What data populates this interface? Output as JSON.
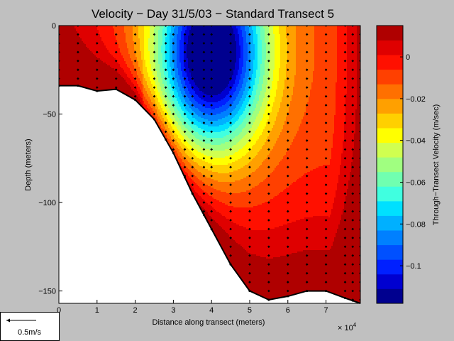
{
  "chart_data": {
    "type": "heatmap",
    "title": "Velocity − Day 31/5/03 − Standard Transect 5",
    "xlabel": "Distance along transect (meters)",
    "ylabel": "Depth (meters)",
    "x_exponent_label": "× 10",
    "x_exponent_power": "4",
    "xlim": [
      0,
      79000
    ],
    "ylim": [
      -157,
      0
    ],
    "x_ticks": [
      {
        "value": 0,
        "label": "0"
      },
      {
        "value": 10000,
        "label": "1"
      },
      {
        "value": 20000,
        "label": "2"
      },
      {
        "value": 30000,
        "label": "3"
      },
      {
        "value": 40000,
        "label": "4"
      },
      {
        "value": 50000,
        "label": "5"
      },
      {
        "value": 60000,
        "label": "6"
      },
      {
        "value": 70000,
        "label": "7"
      }
    ],
    "y_ticks": [
      {
        "value": 0,
        "label": "0"
      },
      {
        "value": -50,
        "label": "−50"
      },
      {
        "value": -100,
        "label": "−100"
      },
      {
        "value": -150,
        "label": "−150"
      }
    ],
    "colorbar": {
      "label": "Through−Transect Velocity (m/sec)",
      "range": [
        -0.118,
        0.015
      ],
      "levels": 19,
      "tick_values": [
        0,
        -0.02,
        -0.04,
        -0.06,
        -0.08,
        -0.1
      ],
      "tick_labels": [
        "0",
        "−0.02",
        "−0.04",
        "−0.06",
        "−0.08",
        "−0.1"
      ],
      "colors": [
        "#00008f",
        "#0000d0",
        "#0020ff",
        "#0050ff",
        "#0080ff",
        "#00b0ff",
        "#00e0ff",
        "#40ffe0",
        "#70ffb0",
        "#a0ff80",
        "#d0ff50",
        "#ffff00",
        "#ffd000",
        "#ffa000",
        "#ff7000",
        "#ff4000",
        "#ff1000",
        "#df0000",
        "#af0000"
      ]
    },
    "bottom_profile": [
      {
        "x": 0,
        "depth": -34
      },
      {
        "x": 5000,
        "depth": -34
      },
      {
        "x": 10000,
        "depth": -37
      },
      {
        "x": 15000,
        "depth": -36
      },
      {
        "x": 20000,
        "depth": -42
      },
      {
        "x": 25000,
        "depth": -53
      },
      {
        "x": 30000,
        "depth": -72
      },
      {
        "x": 35000,
        "depth": -95
      },
      {
        "x": 40000,
        "depth": -115
      },
      {
        "x": 45000,
        "depth": -135
      },
      {
        "x": 50000,
        "depth": -150
      },
      {
        "x": 55000,
        "depth": -155
      },
      {
        "x": 60000,
        "depth": -153
      },
      {
        "x": 65000,
        "depth": -150
      },
      {
        "x": 70000,
        "depth": -150
      },
      {
        "x": 75000,
        "depth": -154
      },
      {
        "x": 79000,
        "depth": -157
      }
    ],
    "station_x": [
      0,
      5000,
      10000,
      15000,
      20000,
      25000,
      28000,
      30000,
      33000,
      35000,
      38000,
      40000,
      45000,
      50000,
      55000,
      60000,
      65000,
      70000,
      75000,
      77000,
      79000
    ],
    "sample_interval_m": 5,
    "core_center": {
      "x": 40000,
      "depth": -15
    },
    "velocity_model_note": ""
  },
  "scale": {
    "label": "0.5m/s"
  }
}
